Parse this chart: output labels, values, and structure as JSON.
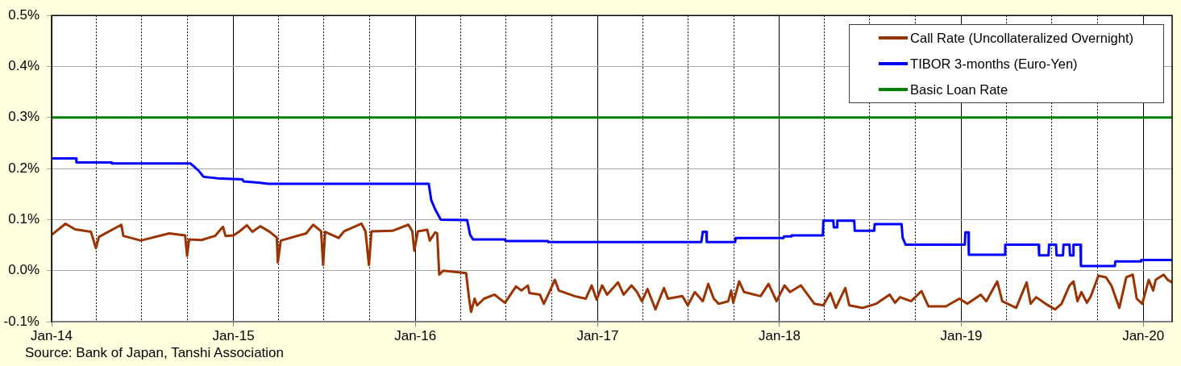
{
  "chart_data": {
    "type": "line",
    "xlim": [
      "2014-01-01",
      "2020-02-28"
    ],
    "xticks": [
      {
        "value": "2014-01-01",
        "label": "Jan-14"
      },
      {
        "value": "2014-04-01",
        "label": null
      },
      {
        "value": "2014-07-01",
        "label": null
      },
      {
        "value": "2014-10-01",
        "label": null
      },
      {
        "value": "2015-01-01",
        "label": "Jan-15"
      },
      {
        "value": "2015-04-01",
        "label": null
      },
      {
        "value": "2015-07-01",
        "label": null
      },
      {
        "value": "2015-10-01",
        "label": null
      },
      {
        "value": "2016-01-01",
        "label": "Jan-16"
      },
      {
        "value": "2016-04-01",
        "label": null
      },
      {
        "value": "2016-07-01",
        "label": null
      },
      {
        "value": "2016-10-01",
        "label": null
      },
      {
        "value": "2017-01-01",
        "label": "Jan-17"
      },
      {
        "value": "2017-04-01",
        "label": null
      },
      {
        "value": "2017-07-01",
        "label": null
      },
      {
        "value": "2017-10-01",
        "label": null
      },
      {
        "value": "2018-01-01",
        "label": "Jan-18"
      },
      {
        "value": "2018-04-01",
        "label": null
      },
      {
        "value": "2018-07-01",
        "label": null
      },
      {
        "value": "2018-10-01",
        "label": null
      },
      {
        "value": "2019-01-01",
        "label": "Jan-19"
      },
      {
        "value": "2019-04-01",
        "label": null
      },
      {
        "value": "2019-07-01",
        "label": null
      },
      {
        "value": "2019-10-01",
        "label": null
      },
      {
        "value": "2020-01-01",
        "label": "Jan-20"
      }
    ],
    "ylim": [
      -0.1,
      0.5
    ],
    "yticks": [
      {
        "value": -0.1,
        "label": "-0.1%"
      },
      {
        "value": 0,
        "label": "0.0%"
      },
      {
        "value": 0.1,
        "label": "0.1%"
      },
      {
        "value": 0.2,
        "label": "0.2%"
      },
      {
        "value": 0.3,
        "label": "0.3%"
      },
      {
        "value": 0.4,
        "label": "0.4%"
      },
      {
        "value": 0.5,
        "label": "0.5%"
      }
    ],
    "grid": true,
    "legend": "top right",
    "annotations": [
      "Source: Bank of Japan, Tanshi Association"
    ],
    "series": [
      {
        "name": "Call Rate (Uncollateralized Overnight)",
        "color": "#993300",
        "x": [
          "2014-01-01",
          "2014-01-29",
          "2014-02-17",
          "2014-03-21",
          "2014-03-31",
          "2014-04-06",
          "2014-05-21",
          "2014-05-25",
          "2014-06-29",
          "2014-08-25",
          "2014-09-26",
          "2014-09-30",
          "2014-10-04",
          "2014-10-29",
          "2014-11-25",
          "2014-12-11",
          "2014-12-16",
          "2015-01-01",
          "2015-01-12",
          "2015-01-28",
          "2015-02-08",
          "2015-02-24",
          "2015-03-15",
          "2015-03-29",
          "2015-03-31",
          "2015-04-06",
          "2015-05-27",
          "2015-06-10",
          "2015-06-26",
          "2015-06-30",
          "2015-07-04",
          "2015-07-31",
          "2015-08-11",
          "2015-09-15",
          "2015-09-23",
          "2015-09-30",
          "2015-10-05",
          "2015-11-16",
          "2015-12-18",
          "2015-12-26",
          "2015-12-30",
          "2016-01-06",
          "2016-01-25",
          "2016-01-30",
          "2016-02-10",
          "2016-02-14",
          "2016-02-18",
          "2016-02-26",
          "2016-04-12",
          "2016-04-18",
          "2016-04-22",
          "2016-04-29",
          "2016-05-04",
          "2016-05-18",
          "2016-06-08",
          "2016-06-29",
          "2016-07-21",
          "2016-08-01",
          "2016-08-14",
          "2016-08-17",
          "2016-09-07",
          "2016-09-15",
          "2016-09-26",
          "2016-10-07",
          "2016-10-15",
          "2016-11-16",
          "2016-12-08",
          "2016-12-20",
          "2016-12-30",
          "2017-01-10",
          "2017-01-20",
          "2017-02-11",
          "2017-02-22",
          "2017-03-10",
          "2017-03-21",
          "2017-03-31",
          "2017-04-11",
          "2017-04-27",
          "2017-05-14",
          "2017-05-22",
          "2017-06-20",
          "2017-07-01",
          "2017-07-15",
          "2017-07-31",
          "2017-08-11",
          "2017-08-22",
          "2017-09-01",
          "2017-09-20",
          "2017-09-26",
          "2017-09-30",
          "2017-10-12",
          "2017-10-22",
          "2017-11-24",
          "2017-12-10",
          "2017-12-26",
          "2018-01-11",
          "2018-01-22",
          "2018-02-13",
          "2018-03-12",
          "2018-03-30",
          "2018-04-13",
          "2018-04-24",
          "2018-05-13",
          "2018-05-21",
          "2018-06-17",
          "2018-07-14",
          "2018-08-10",
          "2018-08-21",
          "2018-08-31",
          "2018-09-22",
          "2018-10-13",
          "2018-10-27",
          "2018-12-01",
          "2018-12-28",
          "2019-01-13",
          "2019-02-09",
          "2019-02-20",
          "2019-03-14",
          "2019-03-24",
          "2019-04-21",
          "2019-05-12",
          "2019-05-20",
          "2019-05-31",
          "2019-06-19",
          "2019-07-08",
          "2019-07-21",
          "2019-08-06",
          "2019-08-14",
          "2019-08-22",
          "2019-08-30",
          "2019-09-10",
          "2019-09-18",
          "2019-10-03",
          "2019-10-18",
          "2019-10-29",
          "2019-11-14",
          "2019-11-28",
          "2019-12-11",
          "2019-12-19",
          "2019-12-30",
          "2020-01-12",
          "2020-01-21",
          "2020-01-26",
          "2020-02-11",
          "2020-02-19",
          "2020-02-28"
        ],
        "values": [
          0.07,
          0.092,
          0.081,
          0.076,
          0.044,
          0.066,
          0.09,
          0.068,
          0.059,
          0.073,
          0.069,
          0.029,
          0.061,
          0.06,
          0.068,
          0.086,
          0.068,
          0.069,
          0.076,
          0.089,
          0.076,
          0.087,
          0.076,
          0.065,
          0.016,
          0.059,
          0.073,
          0.09,
          0.077,
          0.011,
          0.076,
          0.064,
          0.077,
          0.092,
          0.077,
          0.011,
          0.077,
          0.078,
          0.09,
          0.077,
          0.039,
          0.077,
          0.08,
          0.059,
          0.075,
          0.073,
          -0.008,
          0.0,
          -0.005,
          -0.055,
          -0.081,
          -0.055,
          -0.068,
          -0.055,
          -0.047,
          -0.063,
          -0.031,
          -0.039,
          -0.029,
          -0.044,
          -0.047,
          -0.065,
          -0.042,
          -0.018,
          -0.039,
          -0.05,
          -0.055,
          -0.029,
          -0.057,
          -0.029,
          -0.047,
          -0.023,
          -0.047,
          -0.029,
          -0.042,
          -0.06,
          -0.036,
          -0.076,
          -0.034,
          -0.055,
          -0.05,
          -0.068,
          -0.042,
          -0.06,
          -0.026,
          -0.055,
          -0.065,
          -0.06,
          -0.039,
          -0.063,
          -0.021,
          -0.042,
          -0.05,
          -0.026,
          -0.06,
          -0.029,
          -0.042,
          -0.029,
          -0.065,
          -0.068,
          -0.044,
          -0.073,
          -0.034,
          -0.068,
          -0.073,
          -0.065,
          -0.047,
          -0.063,
          -0.052,
          -0.06,
          -0.04,
          -0.07,
          -0.07,
          -0.055,
          -0.065,
          -0.047,
          -0.06,
          -0.021,
          -0.06,
          -0.073,
          -0.023,
          -0.065,
          -0.052,
          -0.065,
          -0.076,
          -0.065,
          -0.029,
          -0.021,
          -0.06,
          -0.042,
          -0.063,
          -0.05,
          -0.01,
          -0.013,
          -0.029,
          -0.073,
          -0.013,
          -0.008,
          -0.055,
          -0.065,
          -0.018,
          -0.039,
          -0.018,
          -0.008,
          -0.018,
          -0.023
        ]
      },
      {
        "name": "TIBOR 3-months (Euro-Yen)",
        "color": "#0000ff",
        "x": [
          "2014-01-01",
          "2014-02-19",
          "2014-02-20",
          "2014-05-01",
          "2014-05-02",
          "2014-10-07",
          "2014-10-23",
          "2014-11-02",
          "2014-11-30",
          "2015-01-19",
          "2015-01-21",
          "2015-02-24",
          "2015-03-12",
          "2016-01-28",
          "2016-02-02",
          "2016-02-10",
          "2016-02-21",
          "2016-04-14",
          "2016-04-20",
          "2016-04-26",
          "2016-06-29",
          "2016-06-30",
          "2016-09-23",
          "2016-09-24",
          "2017-07-28",
          "2017-07-31",
          "2017-08-07",
          "2017-08-08",
          "2017-10-04",
          "2017-10-05",
          "2018-01-09",
          "2018-01-10",
          "2018-01-24",
          "2018-01-25",
          "2018-03-29",
          "2018-03-30",
          "2018-04-19",
          "2018-04-20",
          "2018-04-26",
          "2018-04-27",
          "2018-05-31",
          "2018-06-01",
          "2018-07-10",
          "2018-07-11",
          "2018-09-03",
          "2018-09-05",
          "2018-09-11",
          "2019-01-08",
          "2019-01-09",
          "2019-01-15",
          "2019-01-16",
          "2019-03-29",
          "2019-03-30",
          "2019-06-05",
          "2019-06-06",
          "2019-06-25",
          "2019-06-26",
          "2019-07-10",
          "2019-07-11",
          "2019-07-24",
          "2019-07-25",
          "2019-08-06",
          "2019-08-07",
          "2019-08-13",
          "2019-08-14",
          "2019-08-28",
          "2019-08-29",
          "2019-11-05",
          "2019-11-06",
          "2019-12-27",
          "2019-12-28",
          "2020-02-28"
        ],
        "values": [
          0.22,
          0.22,
          0.212,
          0.212,
          0.21,
          0.21,
          0.196,
          0.184,
          0.181,
          0.179,
          0.175,
          0.172,
          0.17,
          0.17,
          0.138,
          0.12,
          0.1,
          0.099,
          0.07,
          0.061,
          0.061,
          0.058,
          0.058,
          0.056,
          0.056,
          0.076,
          0.076,
          0.056,
          0.056,
          0.064,
          0.064,
          0.067,
          0.067,
          0.069,
          0.069,
          0.098,
          0.098,
          0.085,
          0.085,
          0.098,
          0.098,
          0.078,
          0.078,
          0.091,
          0.091,
          0.065,
          0.051,
          0.051,
          0.075,
          0.075,
          0.031,
          0.031,
          0.051,
          0.051,
          0.03,
          0.03,
          0.051,
          0.051,
          0.03,
          0.03,
          0.051,
          0.051,
          0.03,
          0.03,
          0.051,
          0.051,
          0.009,
          0.009,
          0.018,
          0.018,
          0.021,
          0.021
        ]
      },
      {
        "name": "Basic Loan Rate",
        "color": "#008000",
        "x": [
          "2014-01-01",
          "2020-02-28"
        ],
        "values": [
          0.3,
          0.3
        ]
      }
    ]
  }
}
